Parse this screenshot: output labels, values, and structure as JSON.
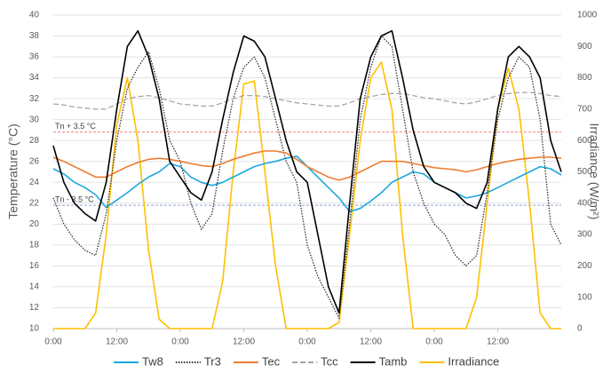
{
  "chart_data": {
    "type": "line",
    "y_label": "Temperature (°C)",
    "y2_label": "Irradiance (W/m²)",
    "x": [
      0,
      2,
      4,
      6,
      8,
      10,
      12,
      14,
      16,
      18,
      20,
      22,
      24,
      26,
      28,
      30,
      32,
      34,
      36,
      38,
      40,
      42,
      44,
      46,
      48,
      50,
      52,
      54,
      56,
      58,
      60,
      62,
      64,
      66,
      68,
      70,
      72,
      74,
      76,
      78,
      80,
      82,
      84,
      86,
      88,
      90,
      92,
      94,
      96
    ],
    "xlim": [
      0,
      96
    ],
    "xticks": [
      {
        "value": 0,
        "label": "0:00"
      },
      {
        "value": 12,
        "label": "12:00"
      },
      {
        "value": 24,
        "label": "0:00"
      },
      {
        "value": 36,
        "label": "12:00"
      },
      {
        "value": 48,
        "label": "0:00"
      },
      {
        "value": 60,
        "label": "12:00"
      },
      {
        "value": 72,
        "label": "0:00"
      },
      {
        "value": 84,
        "label": "12:00"
      }
    ],
    "ylim": [
      10,
      40
    ],
    "yticks": [
      10,
      12,
      14,
      16,
      18,
      20,
      22,
      24,
      26,
      28,
      30,
      32,
      34,
      36,
      38,
      40
    ],
    "y2lim": [
      0,
      1000
    ],
    "y2ticks": [
      0,
      100,
      200,
      300,
      400,
      500,
      600,
      700,
      800,
      900,
      1000
    ],
    "grid": true,
    "legend": "bottom",
    "reference_lines": [
      {
        "label": "Tn + 3.5 °C",
        "value": 28.8,
        "color": "#f08080"
      },
      {
        "label": "Tn - 3.5 °C",
        "value": 21.8,
        "color": "#8fa8d8"
      }
    ],
    "series": [
      {
        "name": "Tw8",
        "color": "#1ca8dd",
        "dash": "solid",
        "values": [
          25.3,
          24.8,
          24,
          23.5,
          22.8,
          21.6,
          22.3,
          23,
          23.8,
          24.5,
          25,
          25.8,
          25.5,
          24.5,
          24,
          23.7,
          24,
          24.5,
          25,
          25.5,
          25.8,
          26,
          26.3,
          26.5,
          25.5,
          24.5,
          23.5,
          22.5,
          21.2,
          21.5,
          22.2,
          23,
          24,
          24.5,
          25,
          24.8,
          24,
          23.5,
          23,
          22.5,
          22.7,
          23,
          23.5,
          24,
          24.5,
          25,
          25.5,
          25.3,
          24.7
        ]
      },
      {
        "name": "Tr3",
        "color": "#333333",
        "dash": "dotted",
        "values": [
          22.5,
          20,
          18.5,
          17.5,
          17,
          21,
          28,
          33,
          35,
          36.5,
          33,
          28,
          26,
          22,
          19.5,
          21,
          27,
          32,
          35,
          36,
          34,
          30,
          26,
          24,
          18,
          15,
          13,
          11,
          20,
          30,
          35,
          38,
          37,
          31,
          25,
          22,
          20,
          19,
          17,
          16,
          17,
          23,
          30,
          34,
          36,
          35,
          30,
          20,
          18
        ]
      },
      {
        "name": "Tec",
        "color": "#ed7d31",
        "dash": "solid",
        "values": [
          26.4,
          26,
          25.5,
          25,
          24.5,
          24.5,
          25,
          25.5,
          25.9,
          26.2,
          26.3,
          26.2,
          26,
          25.8,
          25.6,
          25.5,
          25.8,
          26.2,
          26.5,
          26.8,
          27,
          27,
          26.8,
          26.2,
          25.5,
          25,
          24.5,
          24.2,
          24.5,
          25,
          25.5,
          26,
          26,
          26,
          25.8,
          25.6,
          25.4,
          25.3,
          25.2,
          25,
          25.2,
          25.5,
          25.8,
          26,
          26.2,
          26.3,
          26.4,
          26.4,
          26.3
        ]
      },
      {
        "name": "Tcc",
        "color": "#a6a6a6",
        "dash": "dashed",
        "values": [
          31.5,
          31.4,
          31.2,
          31.1,
          31,
          31,
          31.5,
          32,
          32.2,
          32.3,
          32.1,
          31.8,
          31.5,
          31.4,
          31.3,
          31.3,
          31.6,
          32,
          32.3,
          32.3,
          32.2,
          32,
          31.8,
          31.6,
          31.5,
          31.4,
          31.3,
          31.3,
          31.6,
          32,
          32.2,
          32.4,
          32.5,
          32.5,
          32.3,
          32.1,
          32,
          31.8,
          31.6,
          31.5,
          31.7,
          32,
          32.3,
          32.5,
          32.6,
          32.6,
          32.5,
          32.3,
          32.2
        ]
      },
      {
        "name": "Tamb",
        "color": "#000000",
        "dash": "solid",
        "values": [
          27.5,
          24,
          22,
          21,
          20.3,
          24,
          31,
          37,
          38.5,
          36,
          32,
          26,
          24.5,
          23,
          22.3,
          25,
          30,
          34.5,
          38,
          37.5,
          36,
          32,
          28,
          25,
          24,
          19,
          14,
          11.5,
          22,
          32,
          36,
          38,
          38.5,
          34,
          29,
          25.5,
          24,
          23.5,
          23,
          22,
          21.5,
          24,
          31,
          36,
          37,
          36,
          34,
          28,
          25
        ]
      },
      {
        "name": "Irradiance",
        "color": "#ffc000",
        "dash": "solid",
        "axis": "y2",
        "values": [
          0,
          0,
          0,
          0,
          50,
          300,
          650,
          800,
          600,
          250,
          30,
          0,
          0,
          0,
          0,
          0,
          150,
          500,
          780,
          790,
          500,
          200,
          0,
          0,
          0,
          0,
          0,
          20,
          300,
          600,
          800,
          850,
          700,
          300,
          0,
          0,
          0,
          0,
          0,
          0,
          100,
          400,
          700,
          830,
          700,
          400,
          50,
          0,
          0
        ]
      }
    ]
  }
}
